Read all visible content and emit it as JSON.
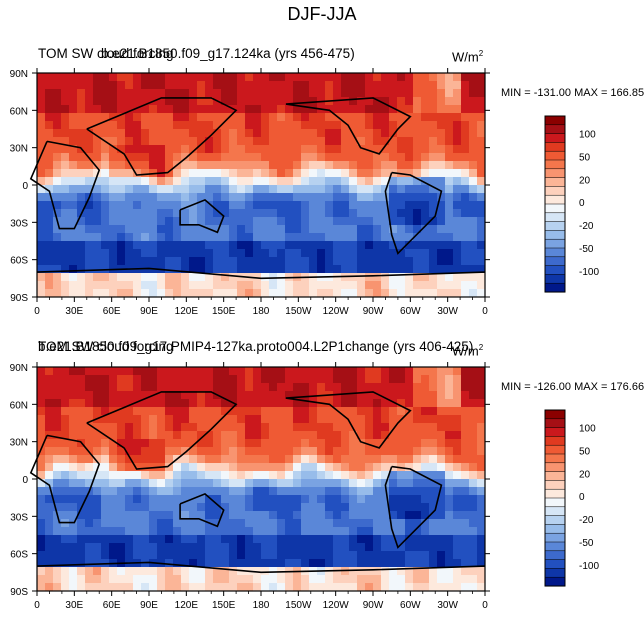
{
  "title": "DJF-JJA",
  "panels": [
    {
      "title_left": "TOM SW cloud forcing",
      "title_overlap": "b.e21.B1850.f09_g17.124ka (yrs 456-475)",
      "units_main": "W/m",
      "units_sup": "2",
      "minmax": "MIN = -131.00 MAX = 166.85"
    },
    {
      "title_left": "TOM SW cloud forcing",
      "title_overlap": "b.e21.B1850.f09_g17.PMIP4-127ka.proto004.L2P1change (yrs 406-425)",
      "units_main": "W/m",
      "units_sup": "2",
      "minmax": "MIN = -126.00 MAX = 176.66"
    }
  ],
  "chart_data": {
    "type": "heatmap",
    "description_panels": [
      "b.e21.B1850.f09_g17.124ka (yrs 456-475)",
      "b.e21.B1850.f09_g17.PMIP4-127ka.proto004.L2P1change (yrs 406-425)"
    ],
    "x_ticks": [
      "0",
      "30E",
      "60E",
      "90E",
      "120E",
      "150E",
      "180",
      "150W",
      "120W",
      "90W",
      "60W",
      "30W",
      "0"
    ],
    "y_ticks": [
      "90N",
      "60N",
      "30N",
      "0",
      "30S",
      "60S",
      "90S"
    ],
    "xlim": [
      0,
      360
    ],
    "ylim": [
      -90,
      90
    ],
    "colorbar": {
      "levels": [
        -120,
        -100,
        -80,
        -70,
        -50,
        -40,
        -30,
        -20,
        -10,
        0,
        10,
        20,
        30,
        40,
        50,
        70,
        80,
        100,
        120
      ],
      "labels": [
        "100",
        "50",
        "20",
        "0",
        "-20",
        "-50",
        "-100"
      ],
      "colors": [
        "#8b0000",
        "#a50f15",
        "#cb181d",
        "#e03a20",
        "#ef5a34",
        "#f4764c",
        "#f89470",
        "#fbb597",
        "#fdd1bd",
        "#fde9dd",
        "#f2f7fb",
        "#d6e6f6",
        "#b7d2f0",
        "#97bcea",
        "#7aa3e2",
        "#5a87d8",
        "#3d6acd",
        "#2250c0",
        "#0e36a8",
        "#00188a"
      ]
    }
  }
}
